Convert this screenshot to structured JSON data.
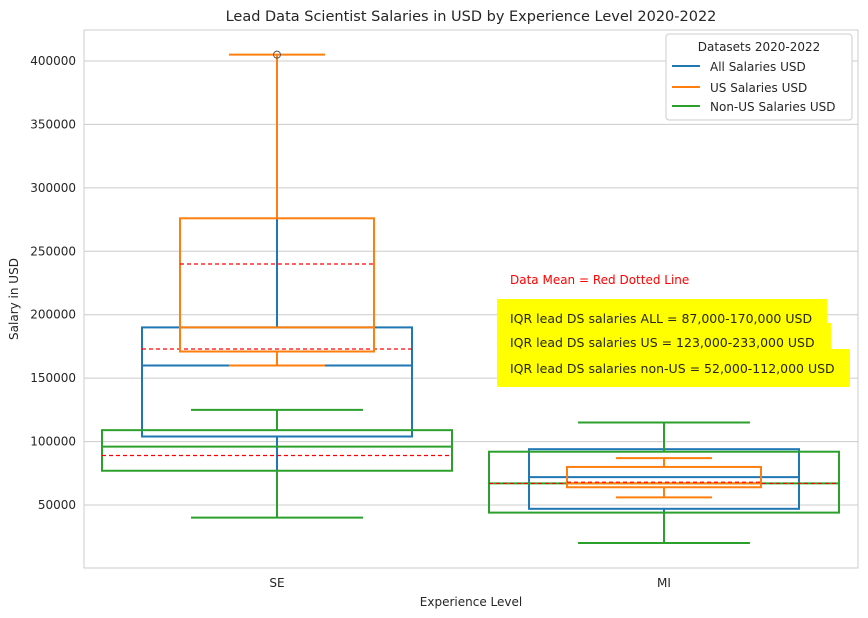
{
  "chart_data": {
    "type": "box",
    "title": "Lead Data Scientist Salaries in USD by Experience Level 2020-2022",
    "xlabel": "Experience Level",
    "ylabel": "Salary in USD",
    "categories": [
      "SE",
      "MI"
    ],
    "ylim": [
      0,
      425000
    ],
    "yticks": [
      50000,
      100000,
      150000,
      200000,
      250000,
      300000,
      350000,
      400000
    ],
    "grid": true,
    "legend": {
      "title": "Datasets 2020-2022",
      "placement": "top-right"
    },
    "series": [
      {
        "name": "All Salaries USD",
        "color": "#1f77b4",
        "boxes": [
          {
            "category": "SE",
            "q1": 104000,
            "median": 160000,
            "q3": 190000,
            "whisker_low": 40000,
            "whisker_high": 276000,
            "mean": 173000,
            "outliers": []
          },
          {
            "category": "MI",
            "q1": 47000,
            "median": 72000,
            "q3": 94000,
            "whisker_low": 20000,
            "whisker_high": 115000,
            "mean": 67000,
            "outliers": []
          }
        ]
      },
      {
        "name": "US Salaries USD",
        "color": "#ff7f0e",
        "boxes": [
          {
            "category": "SE",
            "q1": 171000,
            "median": 190000,
            "q3": 276000,
            "whisker_low": 160000,
            "whisker_high": 405000,
            "mean": 240000,
            "outliers": [
              405000
            ]
          },
          {
            "category": "MI",
            "q1": 64000,
            "median": 67000,
            "q3": 80000,
            "whisker_low": 56000,
            "whisker_high": 87000,
            "mean": 68000,
            "outliers": []
          }
        ]
      },
      {
        "name": "Non-US Salaries USD",
        "color": "#2ca02c",
        "boxes": [
          {
            "category": "SE",
            "q1": 77000,
            "median": 96000,
            "q3": 109000,
            "whisker_low": 40000,
            "whisker_high": 125000,
            "mean": 89000,
            "outliers": []
          },
          {
            "category": "MI",
            "q1": 44000,
            "median": 67000,
            "q3": 92000,
            "whisker_low": 20000,
            "whisker_high": 115000,
            "mean": 67000,
            "outliers": []
          }
        ]
      }
    ],
    "mean_line_color": "#ff0000",
    "annotations": [
      {
        "text": "Data Mean = Red Dotted Line",
        "color": "#ff0000"
      },
      {
        "text": "IQR lead DS salaries ALL = 87,000-170,000 USD",
        "background": "#ffff00"
      },
      {
        "text": "IQR lead DS salaries US = 123,000-233,000 USD",
        "background": "#ffff00"
      },
      {
        "text": "IQR lead DS salaries non-US = 52,000-112,000 USD",
        "background": "#ffff00"
      }
    ]
  }
}
